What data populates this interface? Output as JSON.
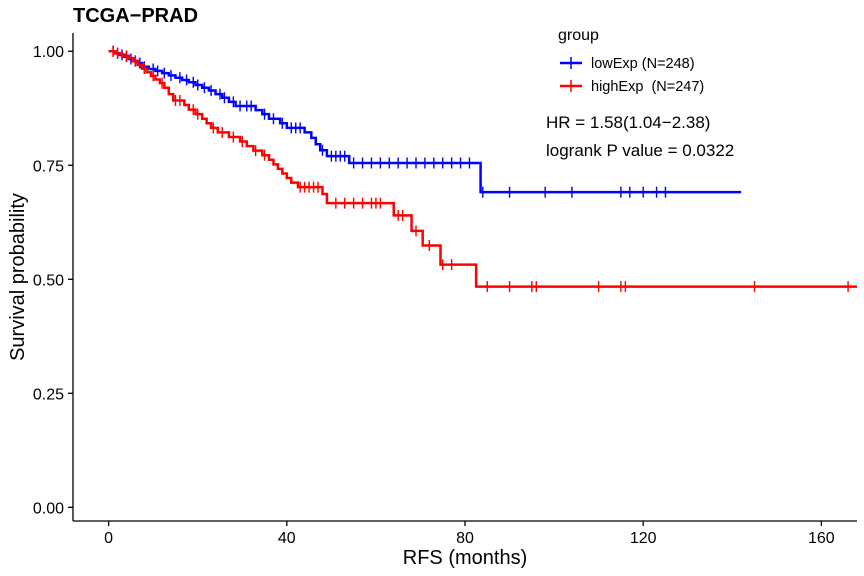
{
  "chart_data": {
    "type": "line",
    "subtype": "kaplan-meier",
    "title": "TCGA−PRAD",
    "xlabel": "RFS (months)",
    "ylabel": "Survival probability",
    "xlim": [
      -8,
      168
    ],
    "ylim": [
      -0.03,
      1.04
    ],
    "x_ticks": [
      0,
      40,
      80,
      120,
      160
    ],
    "x_tick_labels": [
      "0",
      "40",
      "80",
      "120",
      "160"
    ],
    "y_ticks": [
      0,
      0.25,
      0.5,
      0.75,
      1.0
    ],
    "y_tick_labels": [
      "0.00",
      "0.25",
      "0.50",
      "0.75",
      "1.00"
    ],
    "grid": false,
    "legend": {
      "title": "group",
      "placement": "top-right"
    },
    "annotations": [
      "HR = 1.58(1.04−2.38)",
      "logrank P value = 0.0322"
    ],
    "series": [
      {
        "name": "lowExp (N=248)",
        "color": "#0000ff",
        "steps": [
          [
            0,
            1.0
          ],
          [
            1.5,
            0.996
          ],
          [
            2.5,
            0.992
          ],
          [
            3.5,
            0.988
          ],
          [
            4.5,
            0.983
          ],
          [
            5.5,
            0.979
          ],
          [
            6.5,
            0.974
          ],
          [
            7.5,
            0.966
          ],
          [
            9,
            0.961
          ],
          [
            10.5,
            0.957
          ],
          [
            12,
            0.952
          ],
          [
            13.5,
            0.947
          ],
          [
            15,
            0.942
          ],
          [
            16.5,
            0.937
          ],
          [
            18,
            0.932
          ],
          [
            19.5,
            0.926
          ],
          [
            21,
            0.92
          ],
          [
            22.5,
            0.914
          ],
          [
            24,
            0.906
          ],
          [
            25.5,
            0.898
          ],
          [
            27,
            0.889
          ],
          [
            28.5,
            0.88
          ],
          [
            33,
            0.871
          ],
          [
            34.5,
            0.862
          ],
          [
            36,
            0.852
          ],
          [
            38.5,
            0.842
          ],
          [
            40,
            0.832
          ],
          [
            44,
            0.822
          ],
          [
            45.5,
            0.81
          ],
          [
            46.5,
            0.796
          ],
          [
            47.5,
            0.783
          ],
          [
            49,
            0.77
          ],
          [
            54,
            0.755
          ],
          [
            83.5,
            0.691
          ],
          [
            142,
            0.691
          ]
        ],
        "censor_x": [
          1,
          2,
          3,
          4,
          5,
          6,
          7,
          8,
          10,
          11,
          12.5,
          14,
          16,
          17.5,
          19,
          20,
          21.5,
          23,
          25,
          26,
          28,
          29.5,
          31,
          32,
          35,
          37,
          39,
          41,
          42,
          43,
          48,
          50,
          51,
          52,
          53,
          55,
          57,
          59,
          61,
          63,
          65,
          67,
          69,
          71,
          73,
          75,
          77,
          79,
          81,
          84,
          90,
          98,
          104,
          115,
          117,
          120,
          123,
          125
        ]
      },
      {
        "name": "highExp  (N=247)",
        "color": "#ff0000",
        "steps": [
          [
            0,
            1.0
          ],
          [
            1.5,
            0.995
          ],
          [
            3,
            0.99
          ],
          [
            4.5,
            0.985
          ],
          [
            5.5,
            0.978
          ],
          [
            6.5,
            0.97
          ],
          [
            7.5,
            0.962
          ],
          [
            8.5,
            0.954
          ],
          [
            9.5,
            0.946
          ],
          [
            10.5,
            0.938
          ],
          [
            11.5,
            0.93
          ],
          [
            12.5,
            0.92
          ],
          [
            13.5,
            0.906
          ],
          [
            14.5,
            0.892
          ],
          [
            17,
            0.882
          ],
          [
            18,
            0.872
          ],
          [
            19.5,
            0.862
          ],
          [
            21,
            0.852
          ],
          [
            22,
            0.842
          ],
          [
            23,
            0.832
          ],
          [
            24.5,
            0.822
          ],
          [
            27,
            0.812
          ],
          [
            29.5,
            0.802
          ],
          [
            31,
            0.792
          ],
          [
            32.5,
            0.782
          ],
          [
            34.5,
            0.772
          ],
          [
            36,
            0.762
          ],
          [
            37,
            0.752
          ],
          [
            38,
            0.742
          ],
          [
            39,
            0.732
          ],
          [
            40,
            0.722
          ],
          [
            41,
            0.712
          ],
          [
            42.5,
            0.702
          ],
          [
            48,
            0.687
          ],
          [
            49,
            0.667
          ],
          [
            64,
            0.64
          ],
          [
            68,
            0.606
          ],
          [
            70.5,
            0.574
          ],
          [
            74.5,
            0.532
          ],
          [
            82.5,
            0.484
          ],
          [
            168,
            0.484
          ]
        ],
        "censor_x": [
          1,
          2,
          4,
          6,
          8,
          10,
          12,
          15,
          16,
          19,
          20,
          23.5,
          25.5,
          28,
          30,
          33,
          35,
          43,
          44,
          45,
          46,
          47,
          51,
          53,
          55,
          57,
          59,
          60,
          61,
          65,
          66,
          69,
          72,
          75,
          77,
          85,
          90,
          95,
          96,
          110,
          115,
          116,
          145,
          166
        ]
      }
    ]
  }
}
